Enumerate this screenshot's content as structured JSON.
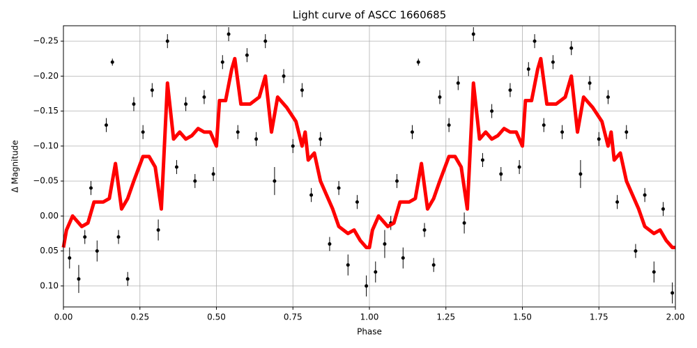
{
  "chart_data": {
    "type": "scatter",
    "title": "Light curve of ASCC 1660685",
    "xlabel": "Phase",
    "ylabel": "Δ Magnitude",
    "xlim": [
      0,
      2
    ],
    "ylim": [
      0.13,
      -0.272
    ],
    "invert_y": true,
    "grid": true,
    "xticks": [
      {
        "value": 0,
        "label": "0.00"
      },
      {
        "value": 0.25,
        "label": "0.25"
      },
      {
        "value": 0.5,
        "label": "0.50"
      },
      {
        "value": 0.75,
        "label": "0.75"
      },
      {
        "value": 1,
        "label": "1.00"
      },
      {
        "value": 1.25,
        "label": "1.25"
      },
      {
        "value": 1.5,
        "label": "1.50"
      },
      {
        "value": 1.75,
        "label": "1.75"
      },
      {
        "value": 2,
        "label": "2.00"
      }
    ],
    "yticks": [
      {
        "value": -0.25,
        "label": "−0.25"
      },
      {
        "value": -0.2,
        "label": "−0.20"
      },
      {
        "value": -0.15,
        "label": "−0.15"
      },
      {
        "value": -0.1,
        "label": "−0.10"
      },
      {
        "value": -0.05,
        "label": "−0.05"
      },
      {
        "value": 0,
        "label": "0.00"
      },
      {
        "value": 0.05,
        "label": "0.05"
      },
      {
        "value": 0.1,
        "label": "0.10"
      }
    ],
    "scatter": {
      "color": "#000000",
      "x": [
        0.02,
        0.05,
        0.07,
        0.09,
        0.11,
        0.14,
        0.16,
        0.18,
        0.21,
        0.23,
        0.26,
        0.29,
        0.31,
        0.34,
        0.37,
        0.4,
        0.43,
        0.46,
        0.49,
        0.52,
        0.54,
        0.57,
        0.6,
        0.63,
        0.66,
        0.69,
        0.72,
        0.75,
        0.78,
        0.81,
        0.84,
        0.87,
        0.9,
        0.93,
        0.96,
        0.99,
        1.02,
        1.05,
        1.07,
        1.09,
        1.11,
        1.14,
        1.16,
        1.18,
        1.21,
        1.23,
        1.26,
        1.29,
        1.31,
        1.34,
        1.37,
        1.4,
        1.43,
        1.46,
        1.49,
        1.52,
        1.54,
        1.57,
        1.6,
        1.63,
        1.66,
        1.69,
        1.72,
        1.75,
        1.78,
        1.81,
        1.84,
        1.87,
        1.9,
        1.93,
        1.96,
        1.99
      ],
      "y": [
        0.06,
        0.09,
        0.03,
        -0.04,
        0.05,
        -0.13,
        -0.22,
        0.03,
        0.09,
        -0.16,
        -0.12,
        -0.18,
        0.02,
        -0.25,
        -0.07,
        -0.16,
        -0.05,
        -0.17,
        -0.06,
        -0.22,
        -0.26,
        -0.12,
        -0.23,
        -0.11,
        -0.25,
        -0.05,
        -0.2,
        -0.1,
        -0.18,
        -0.03,
        -0.11,
        0.04,
        -0.04,
        0.07,
        -0.02,
        0.1,
        0.08,
        0.04,
        0.01,
        -0.05,
        0.06,
        -0.12,
        -0.22,
        0.02,
        0.07,
        -0.17,
        -0.13,
        -0.19,
        0.01,
        -0.26,
        -0.08,
        -0.15,
        -0.06,
        -0.18,
        -0.07,
        -0.21,
        -0.25,
        -0.13,
        -0.22,
        -0.12,
        -0.24,
        -0.06,
        -0.19,
        -0.11,
        -0.17,
        -0.02,
        -0.12,
        0.05,
        -0.03,
        0.08,
        -0.01,
        0.11
      ],
      "errors": [
        0.015,
        0.02,
        0.01,
        0.01,
        0.015,
        0.01,
        0.005,
        0.01,
        0.01,
        0.01,
        0.01,
        0.01,
        0.015,
        0.01,
        0.01,
        0.01,
        0.01,
        0.01,
        0.01,
        0.01,
        0.01,
        0.01,
        0.01,
        0.01,
        0.01,
        0.02,
        0.01,
        0.01,
        0.01,
        0.01,
        0.01,
        0.01,
        0.01,
        0.015,
        0.01,
        0.015,
        0.015,
        0.02,
        0.01,
        0.01,
        0.015,
        0.01,
        0.005,
        0.01,
        0.01,
        0.01,
        0.01,
        0.01,
        0.015,
        0.01,
        0.01,
        0.01,
        0.01,
        0.01,
        0.01,
        0.01,
        0.01,
        0.01,
        0.01,
        0.01,
        0.01,
        0.02,
        0.01,
        0.01,
        0.01,
        0.01,
        0.01,
        0.01,
        0.01,
        0.015,
        0.01,
        0.015
      ]
    },
    "curve": {
      "color": "#ff0000",
      "x": [
        0,
        0.01,
        0.03,
        0.06,
        0.08,
        0.1,
        0.13,
        0.15,
        0.17,
        0.19,
        0.21,
        0.23,
        0.26,
        0.28,
        0.3,
        0.32,
        0.34,
        0.36,
        0.38,
        0.4,
        0.42,
        0.44,
        0.46,
        0.48,
        0.5,
        0.51,
        0.53,
        0.55,
        0.56,
        0.58,
        0.61,
        0.64,
        0.66,
        0.68,
        0.7,
        0.73,
        0.76,
        0.78,
        0.79,
        0.8,
        0.82,
        0.84,
        0.86,
        0.88,
        0.9,
        0.93,
        0.95,
        0.97,
        0.99,
        1.0,
        1.01,
        1.03,
        1.06,
        1.08,
        1.1,
        1.13,
        1.15,
        1.17,
        1.19,
        1.21,
        1.23,
        1.26,
        1.28,
        1.3,
        1.32,
        1.34,
        1.36,
        1.38,
        1.4,
        1.42,
        1.44,
        1.46,
        1.48,
        1.5,
        1.51,
        1.53,
        1.55,
        1.56,
        1.58,
        1.61,
        1.64,
        1.66,
        1.68,
        1.7,
        1.73,
        1.76,
        1.78,
        1.79,
        1.8,
        1.82,
        1.84,
        1.86,
        1.88,
        1.9,
        1.93,
        1.95,
        1.97,
        1.99,
        2.0
      ],
      "y": [
        0.045,
        0.02,
        0,
        0.015,
        0.01,
        -0.02,
        -0.02,
        -0.025,
        -0.075,
        -0.01,
        -0.025,
        -0.05,
        -0.085,
        -0.085,
        -0.07,
        -0.01,
        -0.19,
        -0.11,
        -0.12,
        -0.11,
        -0.115,
        -0.125,
        -0.12,
        -0.12,
        -0.1,
        -0.165,
        -0.165,
        -0.21,
        -0.225,
        -0.16,
        -0.16,
        -0.17,
        -0.2,
        -0.12,
        -0.17,
        -0.155,
        -0.135,
        -0.1,
        -0.12,
        -0.08,
        -0.09,
        -0.05,
        -0.03,
        -0.01,
        0.015,
        0.025,
        0.02,
        0.035,
        0.045,
        0.045,
        0.02,
        0,
        0.015,
        0.01,
        -0.02,
        -0.02,
        -0.025,
        -0.075,
        -0.01,
        -0.025,
        -0.05,
        -0.085,
        -0.085,
        -0.07,
        -0.01,
        -0.19,
        -0.11,
        -0.12,
        -0.11,
        -0.115,
        -0.125,
        -0.12,
        -0.12,
        -0.1,
        -0.165,
        -0.165,
        -0.21,
        -0.225,
        -0.16,
        -0.16,
        -0.17,
        -0.2,
        -0.12,
        -0.17,
        -0.155,
        -0.135,
        -0.1,
        -0.12,
        -0.08,
        -0.09,
        -0.05,
        -0.03,
        -0.01,
        0.015,
        0.025,
        0.02,
        0.035,
        0.045,
        0.045
      ]
    }
  }
}
